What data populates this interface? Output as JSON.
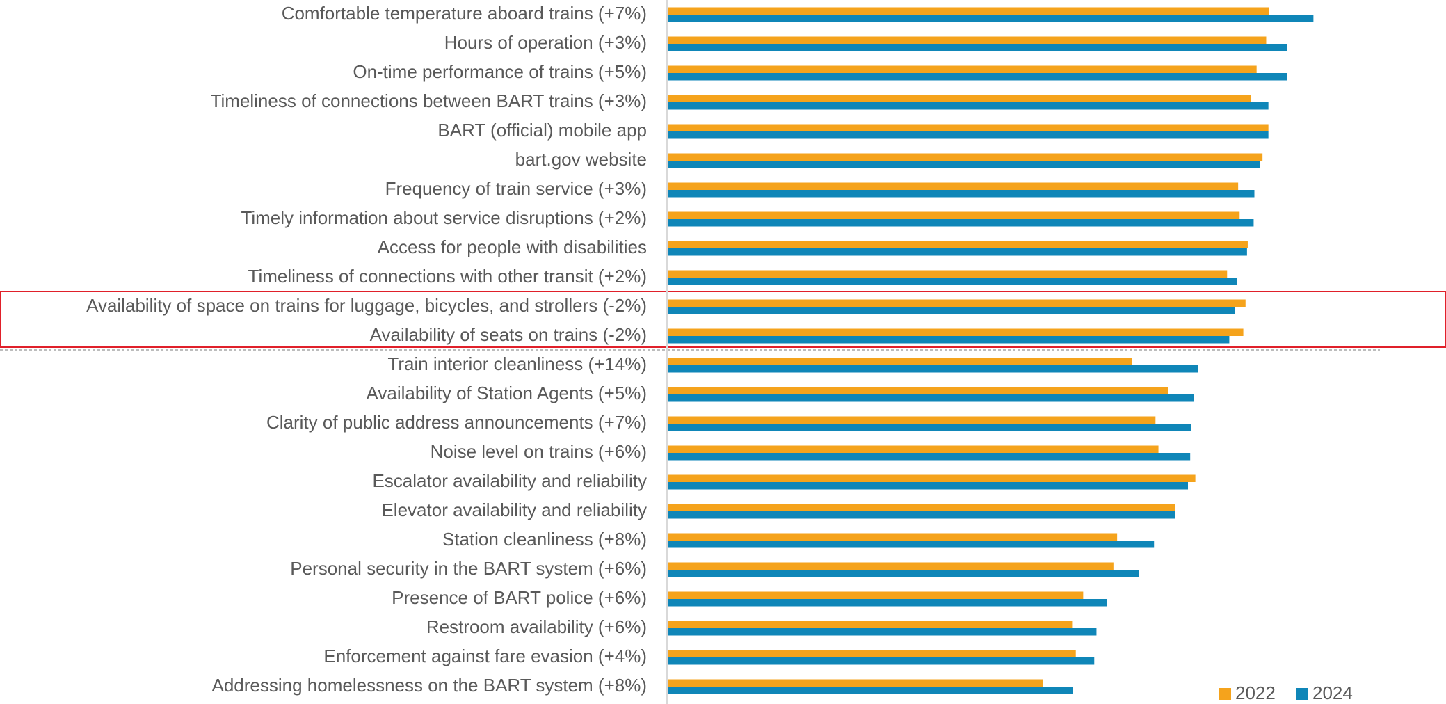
{
  "chart_data": {
    "type": "bar",
    "orientation": "horizontal",
    "categories": [
      "Comfortable temperature aboard trains (+7%)",
      "Hours of operation (+3%)",
      "On-time performance of trains (+5%)",
      "Timeliness of connections between BART trains (+3%)",
      "BART (official) mobile app",
      "bart.gov website",
      "Frequency of train service (+3%)",
      "Timely information about service disruptions (+2%)",
      "Access for people with disabilities",
      "Timeliness of connections with other transit (+2%)",
      "Availability of space on trains for luggage, bicycles, and strollers (-2%)",
      "Availability of seats on trains (-2%)",
      "Train interior cleanliness (+14%)",
      "Availability of Station Agents (+5%)",
      "Clarity of public address announcements (+7%)",
      "Noise level on trains (+6%)",
      "Escalator availability and reliability",
      "Elevator availability and reliability",
      "Station cleanliness (+8%)",
      "Personal security in the BART system (+6%)",
      "Presence of BART police (+6%)",
      "Restroom availability (+6%)",
      "Enforcement against fare evasion (+4%)",
      "Addressing homelessness on the BART system (+8%)"
    ],
    "series": [
      {
        "name": "2022",
        "color": "#f5a31c",
        "values": [
          81.5,
          81.1,
          79.8,
          79.0,
          81.4,
          80.6,
          77.3,
          77.5,
          78.6,
          75.8,
          78.3,
          78.0,
          62.9,
          67.8,
          66.1,
          66.5,
          71.5,
          68.8,
          60.9,
          60.4,
          56.3,
          54.8,
          55.3,
          50.8
        ]
      },
      {
        "name": "2024",
        "color": "#0f86b8",
        "values": [
          87.5,
          83.9,
          83.9,
          81.4,
          81.4,
          80.3,
          79.5,
          79.4,
          78.5,
          77.1,
          76.9,
          76.1,
          71.9,
          71.3,
          70.9,
          70.8,
          70.5,
          68.8,
          65.9,
          63.9,
          59.5,
          58.1,
          57.8,
          54.9
        ]
      }
    ],
    "xlim": [
      0,
      100
    ],
    "legend": "bottom-right"
  }
}
